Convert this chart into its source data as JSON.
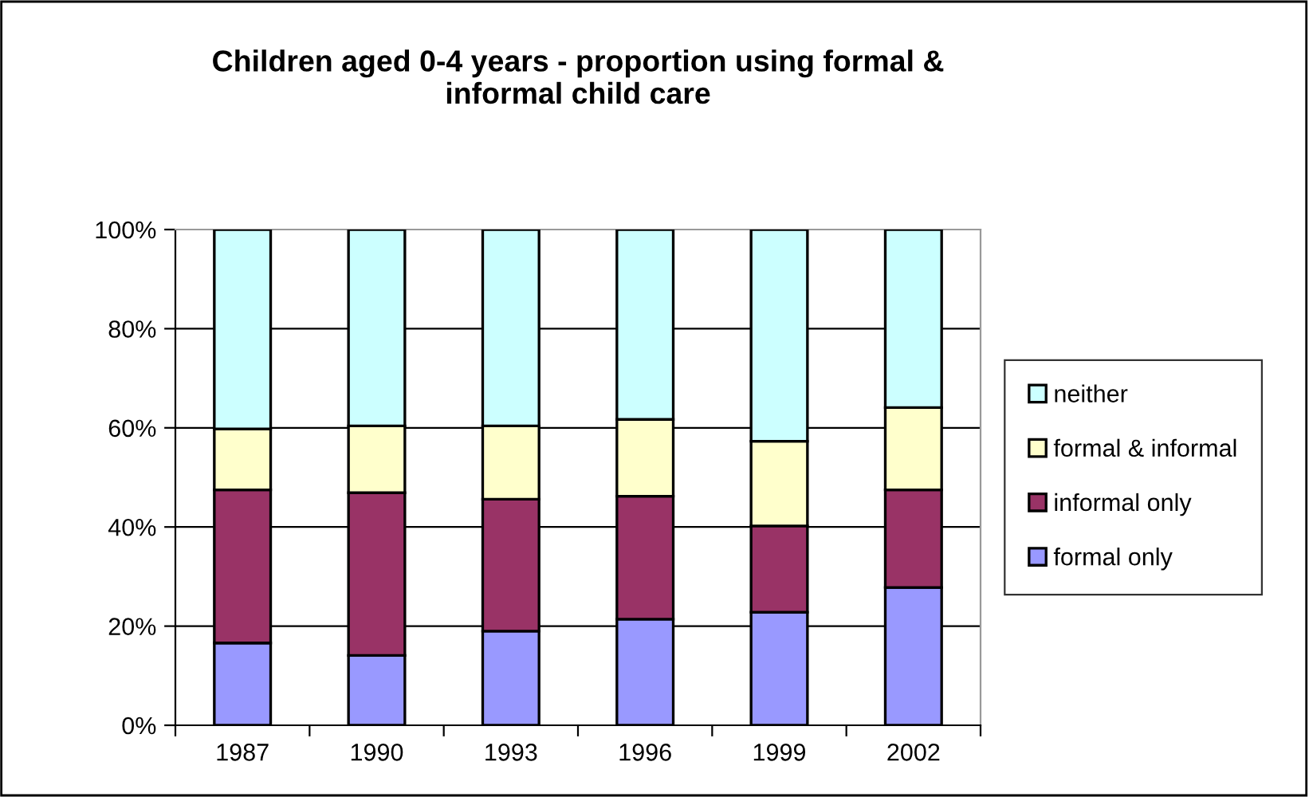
{
  "chart_data": {
    "type": "bar",
    "stacked": true,
    "title": "Children aged 0-4 years - proportion using formal &\ninformal child care",
    "categories": [
      "1987",
      "1990",
      "1993",
      "1996",
      "1999",
      "2002"
    ],
    "series": [
      {
        "name": "formal only",
        "color": "#9999ff",
        "values": [
          16.6,
          14.1,
          19.0,
          21.4,
          22.8,
          27.8
        ]
      },
      {
        "name": "informal only",
        "color": "#993366",
        "values": [
          30.9,
          32.8,
          26.6,
          24.8,
          17.4,
          19.7
        ]
      },
      {
        "name": "formal & informal",
        "color": "#ffffcc",
        "values": [
          12.3,
          13.5,
          14.8,
          15.5,
          17.1,
          16.6
        ]
      },
      {
        "name": "neither",
        "color": "#ccffff",
        "values": [
          40.2,
          39.6,
          39.6,
          38.3,
          42.7,
          35.9
        ]
      }
    ],
    "ylim": [
      0,
      100
    ],
    "yticks": [
      {
        "value": 0,
        "label": "0%"
      },
      {
        "value": 20,
        "label": "20%"
      },
      {
        "value": 40,
        "label": "40%"
      },
      {
        "value": 60,
        "label": "60%"
      },
      {
        "value": 80,
        "label": "80%"
      },
      {
        "value": 100,
        "label": "100%"
      }
    ],
    "grid": "y",
    "legend": "right"
  }
}
